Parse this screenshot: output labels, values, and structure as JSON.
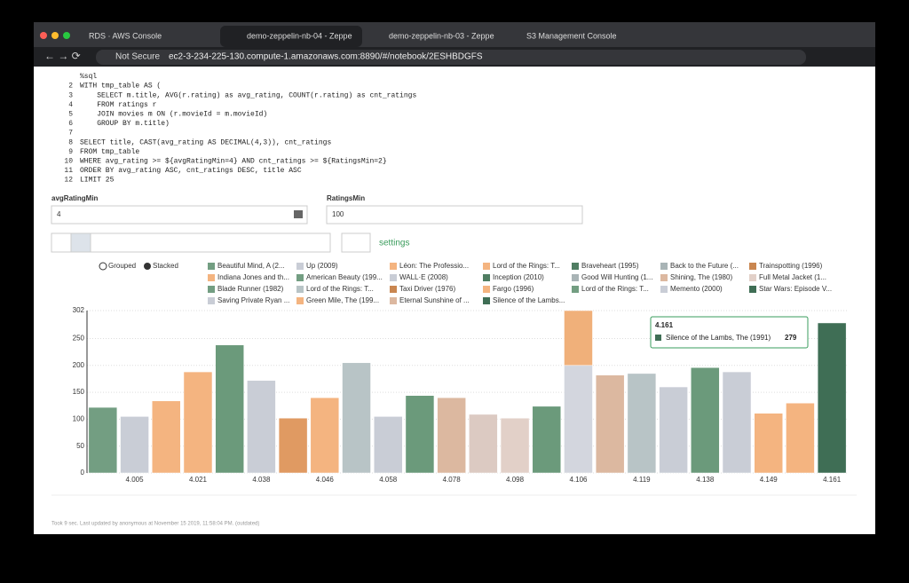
{
  "browser": {
    "tabs": [
      "RDS · AWS Console",
      "demo-zeppelin-nb-04 - Zeppe",
      "demo-zeppelin-nb-03 - Zeppe",
      "S3 Management Console"
    ],
    "security": "Not Secure",
    "url": "ec2-3-234-225-130.compute-1.amazonaws.com:8890/#/notebook/2ESHBDGFS"
  },
  "code": [
    {
      "text": "%sql"
    },
    {
      "n": 2,
      "text": "WITH tmp_table AS ("
    },
    {
      "n": 3,
      "text": "    SELECT m.title, AVG(r.rating) as avg_rating, COUNT(r.rating) as cnt_ratings"
    },
    {
      "n": 4,
      "text": "    FROM ratings r"
    },
    {
      "n": 5,
      "text": "    JOIN movies m ON (r.movieId = m.movieId)"
    },
    {
      "n": 6,
      "text": "    GROUP BY m.title)"
    },
    {
      "n": 7
    },
    {
      "n": 8,
      "text": "SELECT title, CAST(avg_rating AS DECIMAL(4,3)), cnt_ratings"
    },
    {
      "n": 9,
      "text": "FROM tmp_table"
    },
    {
      "n": 10,
      "text": "WHERE avg_rating >= ${avgRatingMin=4} AND cnt_ratings >= ${RatingsMin=2}"
    },
    {
      "n": 11,
      "text": "ORDER BY avg_rating ASC, cnt_ratings DESC, title ASC"
    },
    {
      "n": 12,
      "text": "LIMIT 25"
    }
  ],
  "params": [
    {
      "label": "avgRatingMin",
      "value": "4"
    },
    {
      "label": "RatingsMin",
      "value": "100"
    }
  ],
  "toolbar": {
    "settings": "settings"
  },
  "chart_data": {
    "type": "stacked-bar",
    "modes": [
      "Grouped",
      "Stacked"
    ],
    "legend": [
      {
        "name": "Beautiful Mind, A (2...",
        "color": "#739e82"
      },
      {
        "name": "Up (2009)",
        "color": "#c9cdd6"
      },
      {
        "name": "Léon: The Professio...",
        "color": "#f4b480"
      },
      {
        "name": "Lord of the Rings: T...",
        "color": "#f4b480"
      },
      {
        "name": "Braveheart (1995)",
        "color": "#4f7d62"
      },
      {
        "name": "Back to the Future (...",
        "color": "#a9b4b6"
      },
      {
        "name": "Trainspotting (1996)",
        "color": "#c98650"
      },
      {
        "name": "Indiana Jones and th...",
        "color": "#f4b480"
      },
      {
        "name": "American Beauty (199...",
        "color": "#739e82"
      },
      {
        "name": "WALL·E (2008)",
        "color": "#c9cdd6"
      },
      {
        "name": "Inception (2010)",
        "color": "#4f7d62"
      },
      {
        "name": "Good Will Hunting (1...",
        "color": "#a9b4b6"
      },
      {
        "name": "Shining, The (1980)",
        "color": "#dcb8a0"
      },
      {
        "name": "Full Metal Jacket (1...",
        "color": "#e2d0c8"
      },
      {
        "name": "Blade Runner (1982)",
        "color": "#739e82"
      },
      {
        "name": "Lord of the Rings: T...",
        "color": "#b8c4c6"
      },
      {
        "name": "Taxi Driver (1976)",
        "color": "#c98650"
      },
      {
        "name": "Fargo (1996)",
        "color": "#f4b480"
      },
      {
        "name": "Lord of the Rings: T...",
        "color": "#739e82"
      },
      {
        "name": "Memento (2000)",
        "color": "#c9cdd6"
      },
      {
        "name": "Star Wars: Episode V...",
        "color": "#3f6e55"
      },
      {
        "name": "Saving Private Ryan ...",
        "color": "#c9cdd6"
      },
      {
        "name": "Green Mile, The (199...",
        "color": "#f4b480"
      },
      {
        "name": "Eternal Sunshine of ...",
        "color": "#dcb8a0"
      },
      {
        "name": "Silence of the Lambs...",
        "color": "#3f6e55"
      }
    ],
    "bars": [
      {
        "category": null,
        "segments": [
          {
            "value": 122,
            "color": "#739e82"
          }
        ]
      },
      {
        "category": "4.005",
        "segments": [
          {
            "value": 105,
            "color": "#c9cdd6"
          }
        ]
      },
      {
        "category": null,
        "segments": [
          {
            "value": 134,
            "color": "#f4b480"
          }
        ]
      },
      {
        "category": "4.021",
        "segments": [
          {
            "value": 188,
            "color": "#f4b480"
          }
        ]
      },
      {
        "category": null,
        "segments": [
          {
            "value": 238,
            "color": "#6b9a7b"
          }
        ]
      },
      {
        "category": "4.038",
        "segments": [
          {
            "value": 172,
            "color": "#c9cdd6"
          }
        ]
      },
      {
        "category": null,
        "segments": [
          {
            "value": 102,
            "color": "#e09a62"
          }
        ]
      },
      {
        "category": "4.046",
        "segments": [
          {
            "value": 140,
            "color": "#f4b480"
          }
        ]
      },
      {
        "category": null,
        "segments": [
          {
            "value": 205,
            "color": "#b8c4c6"
          }
        ]
      },
      {
        "category": "4.058",
        "segments": [
          {
            "value": 105,
            "color": "#c9cdd6"
          }
        ]
      },
      {
        "category": null,
        "segments": [
          {
            "value": 144,
            "color": "#6b9a7b"
          }
        ]
      },
      {
        "category": "4.078",
        "segments": [
          {
            "value": 140,
            "color": "#dcb8a0"
          }
        ]
      },
      {
        "category": null,
        "segments": [
          {
            "value": 109,
            "color": "#dccac2"
          }
        ]
      },
      {
        "category": "4.098",
        "segments": [
          {
            "value": 102,
            "color": "#e2d0c8"
          }
        ]
      },
      {
        "category": null,
        "segments": [
          {
            "value": 124,
            "color": "#6b9a7b"
          }
        ]
      },
      {
        "category": "4.106",
        "segments": [
          {
            "value": 200,
            "color": "#d3d6de"
          },
          {
            "value": 102,
            "color": "#f0b07a"
          }
        ]
      },
      {
        "category": null,
        "segments": [
          {
            "value": 182,
            "color": "#dcb8a0"
          }
        ]
      },
      {
        "category": "4.119",
        "segments": [
          {
            "value": 185,
            "color": "#b8c4c6"
          }
        ]
      },
      {
        "category": null,
        "segments": [
          {
            "value": 160,
            "color": "#c9cdd6"
          }
        ]
      },
      {
        "category": "4.138",
        "segments": [
          {
            "value": 196,
            "color": "#6b9a7b"
          }
        ]
      },
      {
        "category": null,
        "segments": [
          {
            "value": 188,
            "color": "#c9cdd6"
          }
        ]
      },
      {
        "category": "4.149",
        "segments": [
          {
            "value": 111,
            "color": "#f4b480"
          }
        ]
      },
      {
        "category": null,
        "segments": [
          {
            "value": 130,
            "color": "#f4b480"
          }
        ]
      },
      {
        "category": "4.161",
        "segments": [
          {
            "value": 279,
            "color": "#3f6e55"
          }
        ]
      }
    ],
    "ylim": [
      0,
      302
    ],
    "yticks": [
      0,
      50,
      100,
      150,
      200,
      250,
      302
    ],
    "grid": true,
    "tooltip": {
      "title": "4.161",
      "name": "Silence of the Lambs, The (1991)",
      "value": 279
    }
  },
  "footer": "Took 9 sec. Last updated by anonymous at November 15 2019, 11:58:04 PM. (outdated)"
}
